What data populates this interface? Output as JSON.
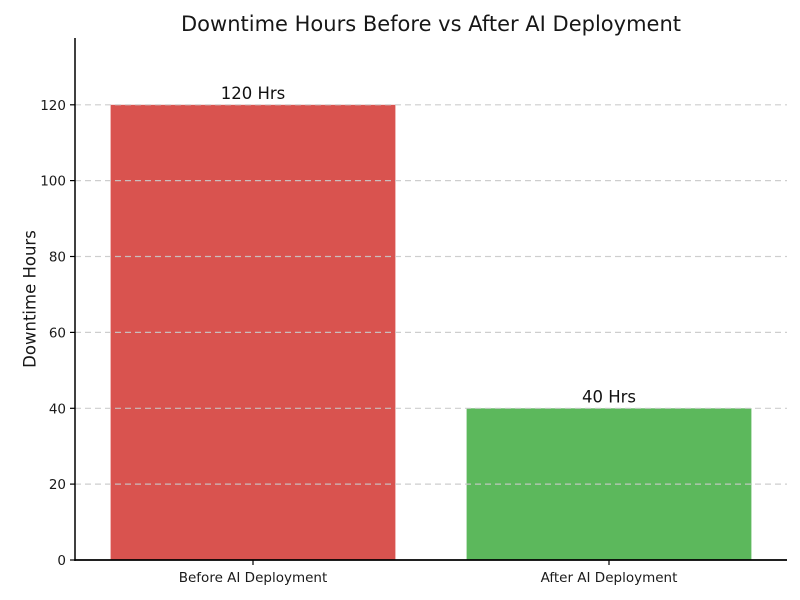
{
  "chart_data": {
    "type": "bar",
    "title": "Downtime Hours Before vs After AI Deployment",
    "xlabel": "",
    "ylabel": "Downtime Hours",
    "categories": [
      "Before AI Deployment",
      "After AI Deployment"
    ],
    "values": [
      120,
      40
    ],
    "bar_labels": [
      "120 Hrs",
      "40 Hrs"
    ],
    "bar_colors": [
      "#d9534f",
      "#5cb85c"
    ],
    "yticks": [
      0,
      20,
      40,
      60,
      80,
      100,
      120
    ],
    "ylim": [
      0,
      137.6
    ],
    "grid": "horizontal-dashed",
    "legend": "none"
  },
  "colors": {
    "grid": "#c9c9c9",
    "axis": "#000000",
    "tick_text": "#1a1a1a",
    "value_text": "#111111",
    "background": "#ffffff"
  }
}
